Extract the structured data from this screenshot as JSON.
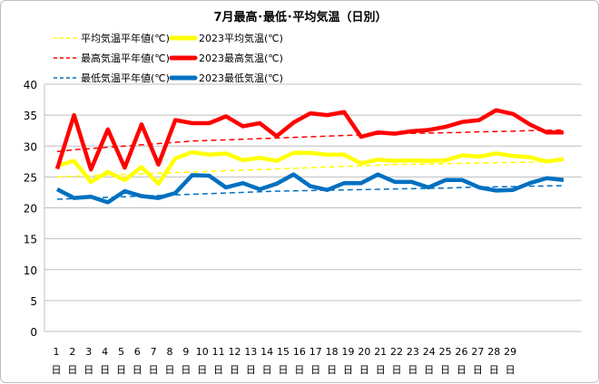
{
  "chart_data": {
    "type": "line",
    "title": "7月最高･最低･平均気温（日別）",
    "xlabel": "",
    "ylabel": "",
    "ylim": [
      0,
      40
    ],
    "yticks": [
      0,
      5,
      10,
      15,
      20,
      25,
      30,
      35,
      40
    ],
    "grid": true,
    "legend_position": "top",
    "categories": [
      "1\n日",
      "2\n日",
      "3\n日",
      "4\n日",
      "5\n日",
      "6\n日",
      "7\n日",
      "8\n日",
      "9\n日",
      "10\n日",
      "11\n日",
      "12\n日",
      "13\n日",
      "14\n日",
      "15\n日",
      "16\n日",
      "17\n日",
      "18\n日",
      "19\n日",
      "20\n日",
      "21\n日",
      "22\n日",
      "23\n日",
      "24\n日",
      "25\n日",
      "26\n日",
      "27\n日",
      "28\n日",
      "29\n日",
      "",
      ""
    ],
    "tick_labels_day": [
      "1",
      "2",
      "3",
      "4",
      "5",
      "6",
      "7",
      "8",
      "9",
      "10",
      "11",
      "12",
      "13",
      "14",
      "15",
      "16",
      "17",
      "18",
      "19",
      "20",
      "21",
      "22",
      "23",
      "24",
      "25",
      "26",
      "27",
      "28",
      "29"
    ],
    "tick_suffix": "日",
    "series": [
      {
        "name": "平均気温平年値(℃)",
        "color": "#ffff00",
        "style": "dashed",
        "values": [
          25.0,
          25.1,
          25.2,
          25.3,
          25.4,
          25.5,
          25.6,
          25.7,
          25.8,
          25.9,
          26.0,
          26.1,
          26.2,
          26.3,
          26.4,
          26.5,
          26.6,
          26.7,
          26.8,
          26.9,
          27.0,
          27.05,
          27.1,
          27.15,
          27.2,
          27.25,
          27.3,
          27.35,
          27.4,
          27.5,
          27.6
        ]
      },
      {
        "name": "2023平均気温(℃)",
        "color": "#ffff00",
        "style": "solid",
        "values": [
          26.8,
          27.6,
          24.2,
          25.8,
          24.5,
          26.6,
          23.9,
          28.0,
          29.0,
          28.6,
          28.8,
          27.7,
          28.1,
          27.6,
          28.9,
          28.9,
          28.6,
          28.6,
          27.2,
          27.8,
          27.6,
          27.7,
          27.6,
          27.7,
          28.5,
          28.3,
          28.8,
          28.4,
          28.2,
          27.5,
          27.9
        ]
      },
      {
        "name": "最高気温平年値(℃)",
        "color": "#ff0000",
        "style": "dashed",
        "values": [
          29.1,
          29.4,
          29.6,
          29.8,
          30.0,
          30.2,
          30.4,
          30.6,
          30.8,
          30.9,
          31.0,
          31.1,
          31.2,
          31.3,
          31.4,
          31.5,
          31.6,
          31.7,
          31.8,
          31.9,
          32.0,
          32.05,
          32.1,
          32.15,
          32.2,
          32.3,
          32.35,
          32.4,
          32.5,
          32.55,
          32.6
        ]
      },
      {
        "name": "2023最高気温(℃)",
        "color": "#ff0000",
        "style": "solid",
        "values": [
          26.3,
          35.0,
          26.2,
          32.7,
          26.5,
          33.5,
          27.0,
          34.2,
          33.7,
          33.7,
          34.8,
          33.2,
          33.7,
          31.6,
          33.8,
          35.3,
          35.0,
          35.5,
          31.5,
          32.2,
          32.0,
          32.4,
          32.6,
          33.1,
          33.9,
          34.2,
          35.8,
          35.2,
          33.5,
          32.2,
          32.2
        ]
      },
      {
        "name": "最低気温平年値(℃)",
        "color": "#0070c0",
        "style": "dashed",
        "values": [
          21.4,
          21.5,
          21.6,
          21.7,
          21.8,
          21.9,
          22.0,
          22.1,
          22.2,
          22.3,
          22.4,
          22.5,
          22.6,
          22.7,
          22.75,
          22.8,
          22.85,
          22.9,
          22.95,
          23.0,
          23.05,
          23.1,
          23.15,
          23.2,
          23.3,
          23.35,
          23.4,
          23.45,
          23.5,
          23.55,
          23.6
        ]
      },
      {
        "name": "2023最低気温(℃)",
        "color": "#0070c0",
        "style": "solid",
        "values": [
          23.0,
          21.6,
          21.8,
          20.9,
          22.7,
          21.9,
          21.6,
          22.4,
          25.3,
          25.2,
          23.3,
          24.0,
          23.0,
          23.9,
          25.4,
          23.5,
          22.9,
          24.0,
          24.0,
          25.4,
          24.2,
          24.2,
          23.3,
          24.5,
          24.5,
          23.3,
          22.8,
          22.9,
          24.0,
          24.8,
          24.5
        ]
      }
    ]
  }
}
